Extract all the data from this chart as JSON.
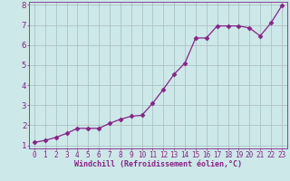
{
  "x": [
    0,
    1,
    2,
    3,
    4,
    5,
    6,
    7,
    8,
    9,
    10,
    11,
    12,
    13,
    14,
    15,
    16,
    17,
    18,
    19,
    20,
    21,
    22,
    23
  ],
  "y": [
    1.15,
    1.25,
    1.4,
    1.6,
    1.85,
    1.85,
    1.85,
    2.1,
    2.3,
    2.45,
    2.5,
    3.1,
    3.8,
    4.55,
    5.1,
    6.35,
    6.35,
    6.95,
    6.95,
    6.95,
    6.85,
    6.45,
    7.1,
    7.95
  ],
  "line_color": "#882288",
  "marker": "D",
  "marker_size": 2.5,
  "bg_color": "#cce8e8",
  "grid_color": "#aabbbb",
  "tick_color": "#882288",
  "label_color": "#882288",
  "xlabel": "Windchill (Refroidissement éolien,°C)",
  "xlim": [
    -0.5,
    23.5
  ],
  "ylim": [
    0.85,
    8.15
  ],
  "xticks": [
    0,
    1,
    2,
    3,
    4,
    5,
    6,
    7,
    8,
    9,
    10,
    11,
    12,
    13,
    14,
    15,
    16,
    17,
    18,
    19,
    20,
    21,
    22,
    23
  ],
  "yticks": [
    1,
    2,
    3,
    4,
    5,
    6,
    7,
    8
  ],
  "font_size": 5.5,
  "ylabel_fontsize": 6.5,
  "xlabel_fontsize": 6.0
}
